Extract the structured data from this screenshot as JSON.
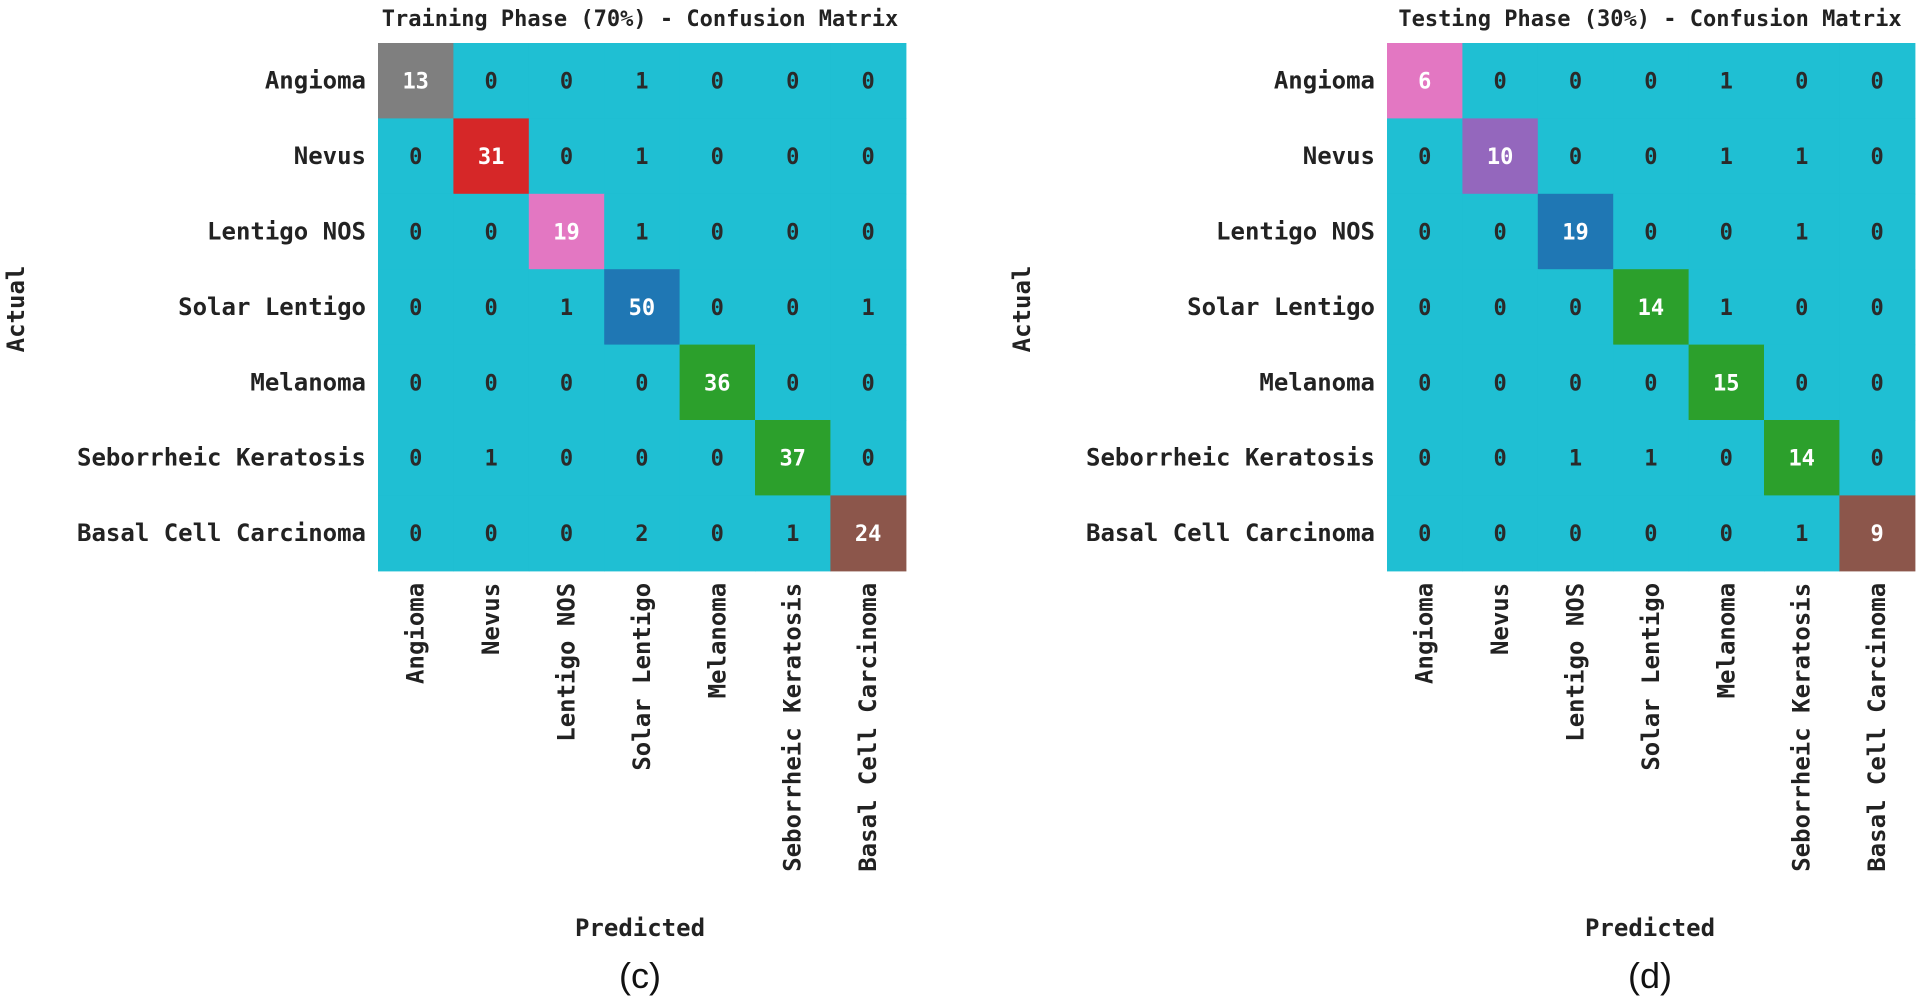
{
  "chart_data": [
    {
      "type": "heatmap",
      "title": "Training Phase (70%) - Confusion Matrix",
      "xlabel": "Predicted",
      "ylabel": "Actual",
      "caption": "(c)",
      "x_categories": [
        "Angioma",
        "Nevus",
        "Lentigo NOS",
        "Solar Lentigo",
        "Melanoma",
        "Seborrheic Keratosis",
        "Basal Cell Carcinoma"
      ],
      "y_categories": [
        "Angioma",
        "Nevus",
        "Lentigo NOS",
        "Solar Lentigo",
        "Melanoma",
        "Seborrheic Keratosis",
        "Basal Cell Carcinoma"
      ],
      "values": [
        [
          13,
          0,
          0,
          1,
          0,
          0,
          0
        ],
        [
          0,
          31,
          0,
          1,
          0,
          0,
          0
        ],
        [
          0,
          0,
          19,
          1,
          0,
          0,
          0
        ],
        [
          0,
          0,
          1,
          50,
          0,
          0,
          1
        ],
        [
          0,
          0,
          0,
          0,
          36,
          0,
          0
        ],
        [
          0,
          1,
          0,
          0,
          0,
          37,
          0
        ],
        [
          0,
          0,
          0,
          2,
          0,
          1,
          24
        ]
      ],
      "background_color": "#1fbfd3",
      "diagonal_colors": [
        "#7f7f7f",
        "#d62728",
        "#e377c2",
        "#1f77b4",
        "#2ca02c",
        "#2ca02c",
        "#8c564b"
      ]
    },
    {
      "type": "heatmap",
      "title": "Testing Phase (30%) - Confusion Matrix",
      "xlabel": "Predicted",
      "ylabel": "Actual",
      "caption": "(d)",
      "x_categories": [
        "Angioma",
        "Nevus",
        "Lentigo NOS",
        "Solar Lentigo",
        "Melanoma",
        "Seborrheic Keratosis",
        "Basal Cell Carcinoma"
      ],
      "y_categories": [
        "Angioma",
        "Nevus",
        "Lentigo NOS",
        "Solar Lentigo",
        "Melanoma",
        "Seborrheic Keratosis",
        "Basal Cell Carcinoma"
      ],
      "values": [
        [
          6,
          0,
          0,
          0,
          1,
          0,
          0
        ],
        [
          0,
          10,
          0,
          0,
          1,
          1,
          0
        ],
        [
          0,
          0,
          19,
          0,
          0,
          1,
          0
        ],
        [
          0,
          0,
          0,
          14,
          1,
          0,
          0
        ],
        [
          0,
          0,
          0,
          0,
          15,
          0,
          0
        ],
        [
          0,
          0,
          1,
          1,
          0,
          14,
          0
        ],
        [
          0,
          0,
          0,
          0,
          0,
          1,
          9
        ]
      ],
      "background_color": "#1fbfd3",
      "diagonal_colors": [
        "#e377c2",
        "#9467bd",
        "#1f77b4",
        "#2ca02c",
        "#2ca02c",
        "#2ca02c",
        "#8c564b"
      ]
    }
  ]
}
